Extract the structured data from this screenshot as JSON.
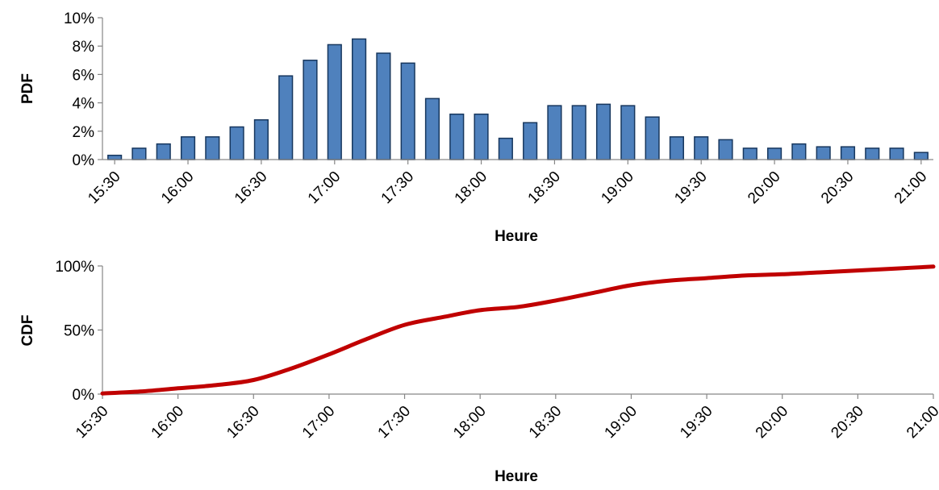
{
  "chart_data": [
    {
      "type": "bar",
      "ylabel": "PDF",
      "xlabel": "Heure",
      "x_tick_labels": [
        "15:30",
        "16:00",
        "16:30",
        "17:00",
        "17:30",
        "18:00",
        "18:30",
        "19:00",
        "19:30",
        "20:00",
        "20:30",
        "21:00"
      ],
      "y_tick_labels": [
        "0%",
        "2%",
        "4%",
        "6%",
        "8%",
        "10%"
      ],
      "ylim": [
        0,
        10
      ],
      "y_unit": "%",
      "grid": false,
      "legend": "none",
      "bar_color": "#4f81bd",
      "bar_edge_color": "#17375e",
      "categories": [
        "15:30",
        "15:40",
        "15:50",
        "16:00",
        "16:10",
        "16:20",
        "16:30",
        "16:40",
        "16:50",
        "17:00",
        "17:10",
        "17:20",
        "17:30",
        "17:40",
        "17:50",
        "18:00",
        "18:10",
        "18:20",
        "18:30",
        "18:40",
        "18:50",
        "19:00",
        "19:10",
        "19:20",
        "19:30",
        "19:40",
        "19:50",
        "20:00",
        "20:10",
        "20:20",
        "20:30",
        "20:40",
        "20:50",
        "21:00"
      ],
      "values": [
        0.3,
        0.8,
        1.1,
        1.6,
        1.6,
        2.3,
        2.8,
        5.9,
        7.0,
        8.1,
        8.5,
        7.5,
        6.8,
        4.3,
        3.2,
        3.2,
        1.5,
        2.6,
        3.8,
        3.8,
        3.9,
        3.8,
        3.0,
        1.6,
        1.6,
        1.4,
        0.8,
        0.8,
        1.1,
        0.9,
        0.9,
        0.8,
        0.8,
        0.5
      ]
    },
    {
      "type": "line",
      "ylabel": "CDF",
      "xlabel": "Heure",
      "x_tick_labels": [
        "15:30",
        "16:00",
        "16:30",
        "17:00",
        "17:30",
        "18:00",
        "18:30",
        "19:00",
        "19:30",
        "20:00",
        "20:30",
        "21:00"
      ],
      "y_tick_labels": [
        "0%",
        "50%",
        "100%"
      ],
      "ylim": [
        0,
        100
      ],
      "y_unit": "%",
      "grid": false,
      "legend": "none",
      "line_color": "#c00000",
      "x": [
        "15:30",
        "15:45",
        "16:00",
        "16:15",
        "16:30",
        "16:45",
        "17:00",
        "17:15",
        "17:30",
        "17:45",
        "18:00",
        "18:15",
        "18:30",
        "18:45",
        "19:00",
        "19:15",
        "19:30",
        "19:45",
        "20:00",
        "20:15",
        "20:30",
        "20:45",
        "21:00"
      ],
      "values": [
        0.5,
        2,
        4.5,
        7,
        11,
        20,
        31,
        43,
        54,
        60,
        65.5,
        68,
        73,
        79,
        85,
        88.5,
        90.5,
        92.5,
        93.5,
        95,
        96.5,
        98,
        99.5
      ]
    }
  ]
}
